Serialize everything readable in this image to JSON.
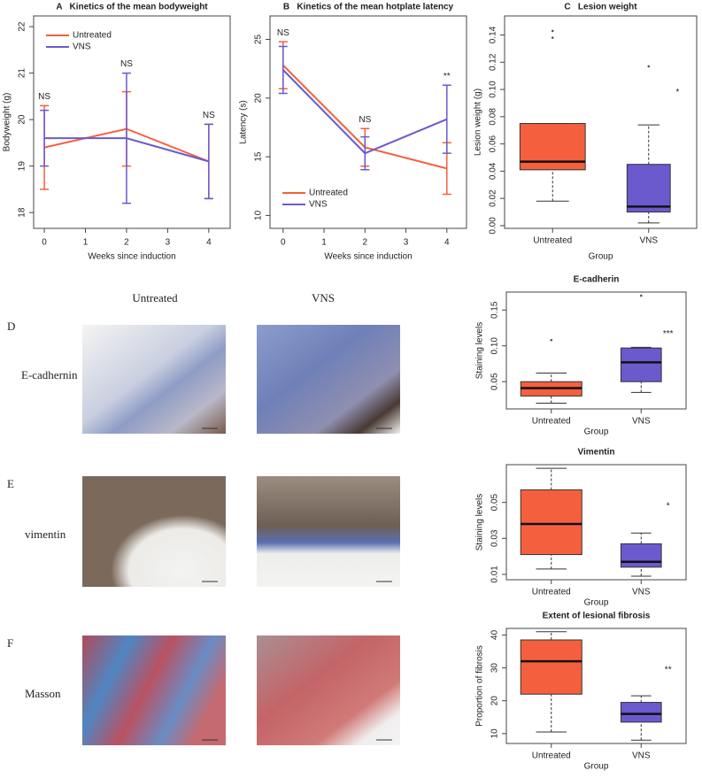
{
  "figure": {
    "column_headers": [
      "Untreated",
      "VNS"
    ],
    "rows": [
      {
        "panel": "D",
        "label": "E-cadhernin"
      },
      {
        "panel": "E",
        "label": "vimentin"
      },
      {
        "panel": "F",
        "label": "Masson"
      }
    ]
  },
  "chart_data": [
    {
      "type": "line",
      "title": "A   Kinetics of the mean bodyweight",
      "x_label": "Weeks since induction",
      "y_label": "Bodyweight (g)",
      "x": [
        0,
        2,
        4
      ],
      "xlim": [
        -0.26,
        4.52
      ],
      "xticks": [
        0,
        1,
        2,
        3,
        4
      ],
      "ylim": [
        17.66,
        22.23
      ],
      "yticks": [
        18,
        19,
        20,
        21,
        22
      ],
      "legend": "upper left",
      "annotations": [
        "NS",
        "NS",
        "NS"
      ],
      "series": [
        {
          "name": "Untreated",
          "color": "#f4603e",
          "values": [
            19.4,
            19.8,
            19.1
          ],
          "errors": [
            0.9,
            0.8,
            0.8
          ]
        },
        {
          "name": "VNS",
          "color": "#6a5acd",
          "values": [
            19.6,
            19.6,
            19.1
          ],
          "errors": [
            0.6,
            1.4,
            0.8
          ]
        }
      ]
    },
    {
      "type": "line",
      "title": "B   Kinetics of the mean hotplate latency",
      "x_label": "Weeks since induction",
      "y_label": "Latency (s)",
      "x": [
        0,
        2,
        4
      ],
      "xlim": [
        -0.32,
        4.48
      ],
      "xticks": [
        0,
        1,
        2,
        3,
        4
      ],
      "ylim": [
        8.9,
        27.0
      ],
      "yticks": [
        10,
        15,
        20,
        25
      ],
      "legend": "lower left",
      "annotations": [
        "NS",
        "NS",
        "**"
      ],
      "series": [
        {
          "name": "Untreated",
          "color": "#f4603e",
          "values": [
            22.8,
            15.8,
            14.0
          ],
          "errors": [
            2.0,
            1.6,
            2.2
          ]
        },
        {
          "name": "VNS",
          "color": "#6a5acd",
          "values": [
            22.4,
            15.3,
            18.2
          ],
          "errors": [
            2.0,
            1.4,
            2.9
          ]
        }
      ]
    },
    {
      "type": "box",
      "title": "C   Lesion weight",
      "x_label": "Group",
      "y_label": "Lesion weight (g)",
      "categories": [
        "Untreated",
        "VNS"
      ],
      "colors": [
        "#f4603e",
        "#6a5acd"
      ],
      "annotation": "*",
      "ylim": [
        -0.002,
        0.154
      ],
      "yticks": [
        {
          "value": 0,
          "label": "0.00"
        },
        {
          "value": 0.02,
          "label": "0.02"
        },
        {
          "value": 0.04,
          "label": "0.04"
        },
        {
          "value": 0.06,
          "label": "0.06"
        },
        {
          "value": 0.08,
          "label": "0.08"
        },
        {
          "value": 0.1,
          "label": "0.10"
        },
        {
          "value": 0.12,
          "label": "0.12"
        },
        {
          "value": 0.14,
          "label": "0.14"
        }
      ],
      "stats": [
        {
          "min": 0.018,
          "q1": 0.041,
          "median": 0.047,
          "q3": 0.075,
          "max": 0.075,
          "outliers": [
            0.138,
            0.143
          ]
        },
        {
          "min": 0.002,
          "q1": 0.01,
          "median": 0.014,
          "q3": 0.045,
          "max": 0.074,
          "outliers": [
            0.117
          ]
        }
      ]
    },
    {
      "type": "box",
      "title": "E-cadherin",
      "x_label": "Group",
      "y_label": "Staining levels",
      "categories": [
        "Untreated",
        "VNS"
      ],
      "colors": [
        "#f4603e",
        "#6a5acd"
      ],
      "annotation": "***",
      "ylim": [
        0.012,
        0.175
      ],
      "yticks": [
        {
          "value": 0.05,
          "label": "0.05"
        },
        {
          "value": 0.1,
          "label": "0.10"
        },
        {
          "value": 0.15,
          "label": "0.15"
        }
      ],
      "stats": [
        {
          "min": 0.02,
          "q1": 0.03,
          "median": 0.041,
          "q3": 0.05,
          "max": 0.062,
          "outliers": [
            0.108
          ]
        },
        {
          "min": 0.035,
          "q1": 0.05,
          "median": 0.077,
          "q3": 0.097,
          "max": 0.098,
          "outliers": [
            0.17
          ]
        }
      ]
    },
    {
      "type": "box",
      "title": "Vimentin",
      "x_label": "Group",
      "y_label": "Staining levels",
      "categories": [
        "Untreated",
        "VNS"
      ],
      "colors": [
        "#f4603e",
        "#6a5acd"
      ],
      "annotation": "*",
      "ylim": [
        0.007,
        0.071
      ],
      "yticks": [
        0.01,
        0.03,
        0.05
      ],
      "stats": [
        {
          "min": 0.013,
          "q1": 0.021,
          "median": 0.038,
          "q3": 0.057,
          "max": 0.069,
          "outliers": []
        },
        {
          "min": 0.009,
          "q1": 0.014,
          "median": 0.017,
          "q3": 0.027,
          "max": 0.033,
          "outliers": []
        }
      ]
    },
    {
      "type": "box",
      "title": "Extent of lesional fibrosis",
      "x_label": "Group",
      "y_label": "Proportion of fibrosis",
      "categories": [
        "Untreated",
        "VNS"
      ],
      "colors": [
        "#f4603e",
        "#6a5acd"
      ],
      "annotation": "**",
      "ylim": [
        7,
        42
      ],
      "yticks": [
        10,
        20,
        30,
        40
      ],
      "stats": [
        {
          "min": 10.5,
          "q1": 22,
          "median": 32,
          "q3": 38.5,
          "max": 41,
          "outliers": []
        },
        {
          "min": 8,
          "q1": 13.5,
          "median": 16,
          "q3": 19.5,
          "max": 21.5,
          "outliers": []
        }
      ]
    }
  ]
}
